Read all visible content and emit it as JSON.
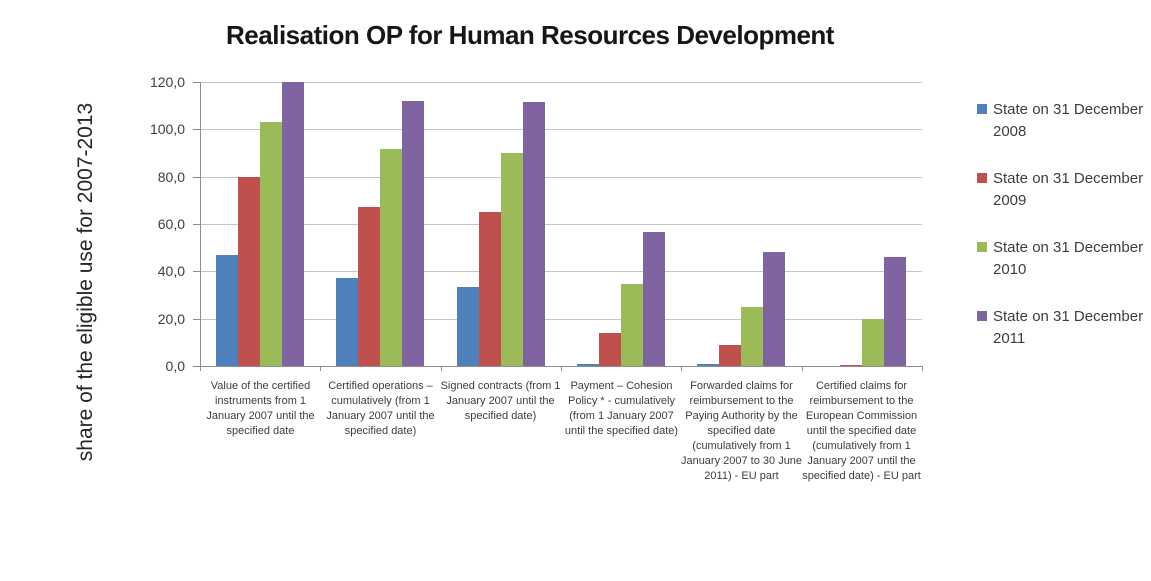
{
  "chart_data": {
    "type": "bar",
    "title": "Realisation OP for Human Resources Development",
    "ylabel": "share of the eligible use for 2007-2013",
    "xlabel": "",
    "ylim": [
      0,
      120
    ],
    "ytick_step": 20,
    "ytick_labels": [
      "0,0",
      "20,0",
      "40,0",
      "60,0",
      "80,0",
      "100,0",
      "120,0"
    ],
    "grid": true,
    "legend_position": "right",
    "categories": [
      "Value of the certified instruments from 1 January 2007 until the specified date",
      "Certified operations – cumulatively (from 1 January 2007 until the specified date)",
      "Signed contracts (from 1 January 2007 until the specified date)",
      "Payment – Cohesion Policy * - cumulatively (from 1 January 2007 until the specified date)",
      "Forwarded claims for reimbursement to the Paying Authority by the specified date (cumulatively from 1 January 2007 to 30 June 2011) - EU part",
      "Certified claims for reimbursement to the European Commission until the specified date (cumulatively from 1 January 2007 until the specified date) - EU part"
    ],
    "series": [
      {
        "name": "State on 31 December 2008",
        "color": "#4F81BD",
        "values": [
          47,
          37,
          33.5,
          1,
          0.7,
          0
        ]
      },
      {
        "name": "State on 31 December 2009",
        "color": "#C0504D",
        "values": [
          80,
          67,
          65,
          14,
          9,
          0.5
        ]
      },
      {
        "name": "State on 31 December 2010",
        "color": "#9BBB59",
        "values": [
          103,
          91.5,
          90,
          34.5,
          25,
          20
        ]
      },
      {
        "name": "State on 31 December 2011",
        "color": "#8064A2",
        "values": [
          120,
          112,
          111.5,
          56.5,
          48,
          46
        ]
      }
    ],
    "colors": {
      "gridline": "#C6C6C6",
      "axis": "#8E8E8E"
    }
  }
}
